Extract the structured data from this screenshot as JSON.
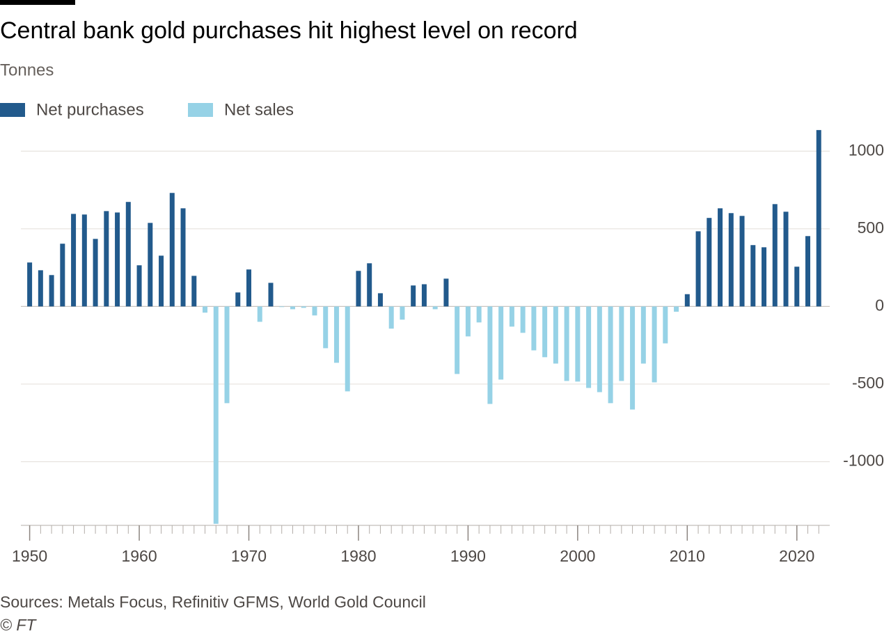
{
  "chart_data": {
    "type": "bar",
    "title": "Central bank gold purchases hit highest level on record",
    "subtitle": "Tonnes",
    "source": "Sources: Metals Focus, Refinitiv GFMS, World Gold Council",
    "credit": "© FT",
    "x": [
      1950,
      1951,
      1952,
      1953,
      1954,
      1955,
      1956,
      1957,
      1958,
      1959,
      1960,
      1961,
      1962,
      1963,
      1964,
      1965,
      1966,
      1967,
      1968,
      1969,
      1970,
      1971,
      1972,
      1973,
      1974,
      1975,
      1976,
      1977,
      1978,
      1979,
      1980,
      1981,
      1982,
      1983,
      1984,
      1985,
      1986,
      1987,
      1988,
      1989,
      1990,
      1991,
      1992,
      1993,
      1994,
      1995,
      1996,
      1997,
      1998,
      1999,
      2000,
      2001,
      2002,
      2003,
      2004,
      2005,
      2006,
      2007,
      2008,
      2009,
      2010,
      2011,
      2012,
      2013,
      2014,
      2015,
      2016,
      2017,
      2018,
      2019,
      2020,
      2021,
      2022
    ],
    "series": [
      {
        "name": "Net purchases",
        "color": "#225a8c",
        "values": [
          283,
          233,
          202,
          404,
          596,
          592,
          435,
          614,
          605,
          673,
          265,
          538,
          327,
          731,
          632,
          197,
          null,
          null,
          null,
          90,
          238,
          null,
          152,
          null,
          null,
          null,
          null,
          null,
          null,
          null,
          229,
          278,
          85,
          null,
          null,
          135,
          143,
          null,
          179,
          null,
          null,
          null,
          null,
          null,
          null,
          null,
          null,
          null,
          null,
          null,
          null,
          null,
          null,
          null,
          null,
          null,
          null,
          null,
          null,
          null,
          79,
          484,
          570,
          632,
          601,
          583,
          395,
          381,
          659,
          610,
          256,
          453,
          1136
        ]
      },
      {
        "name": "Net sales",
        "color": "#96d2e6",
        "values": [
          null,
          null,
          null,
          null,
          null,
          null,
          null,
          null,
          null,
          null,
          null,
          null,
          null,
          null,
          null,
          null,
          -40,
          -1400,
          -623,
          null,
          null,
          -99,
          null,
          -4,
          -18,
          -9,
          -58,
          -269,
          -363,
          -547,
          null,
          null,
          null,
          -143,
          -85,
          null,
          null,
          -18,
          null,
          -435,
          -193,
          -103,
          -628,
          -471,
          -130,
          -170,
          -283,
          -327,
          -368,
          -480,
          -484,
          -525,
          -552,
          -623,
          -480,
          -664,
          -368,
          -489,
          -238,
          -34,
          null,
          null,
          null,
          null,
          null,
          null,
          null,
          null,
          null,
          null,
          null,
          null,
          null
        ]
      }
    ],
    "xlim": [
      1949.2,
      2023
    ],
    "xticks": [
      1950,
      1960,
      1970,
      1980,
      1990,
      2000,
      2010,
      2020
    ],
    "ylim": [
      -1410,
      1140
    ],
    "yticks": [
      -1000,
      -500,
      0,
      500,
      1000
    ],
    "grid": true
  }
}
